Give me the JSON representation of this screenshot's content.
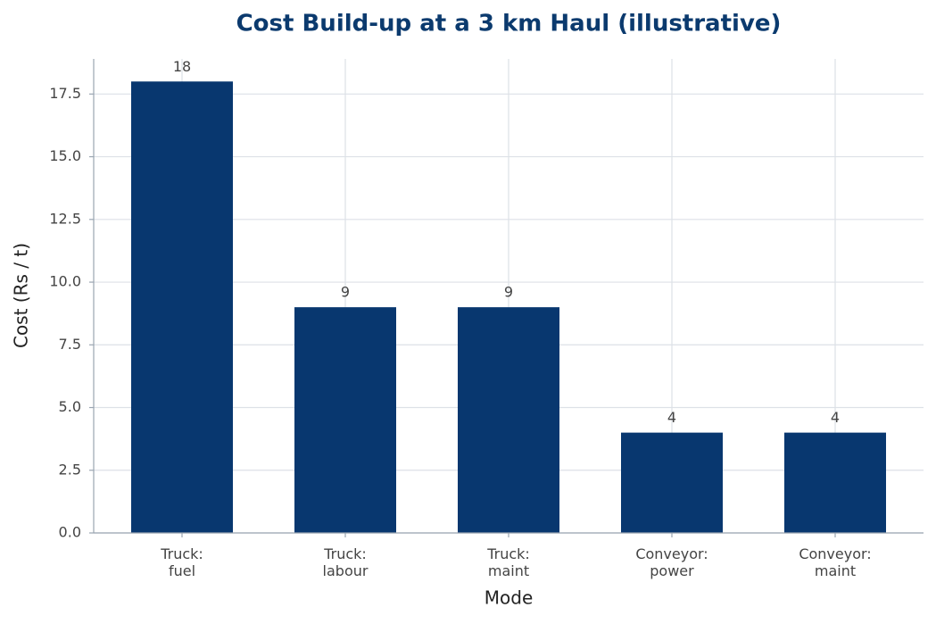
{
  "chart_data": {
    "type": "bar",
    "title": "Cost Build-up at a 3 km Haul (illustrative)",
    "x_label": "Mode",
    "y_label": "Cost (Rs / t)",
    "categories": [
      "Truck:\nfuel",
      "Truck:\nlabour",
      "Truck:\nmaint",
      "Conveyor:\npower",
      "Conveyor:\nmaint"
    ],
    "values": [
      18,
      9,
      9,
      4,
      4
    ],
    "color": "#08376f",
    "ylim": [
      0,
      18.9
    ],
    "yticks": [
      {
        "value": 0,
        "label": "0.0"
      },
      2.5,
      {
        "value": 5,
        "label": "5.0"
      },
      7.5,
      {
        "value": 10,
        "label": "10.0"
      },
      12.5,
      {
        "value": 15,
        "label": "15.0"
      },
      17.5
    ],
    "grid": true
  }
}
